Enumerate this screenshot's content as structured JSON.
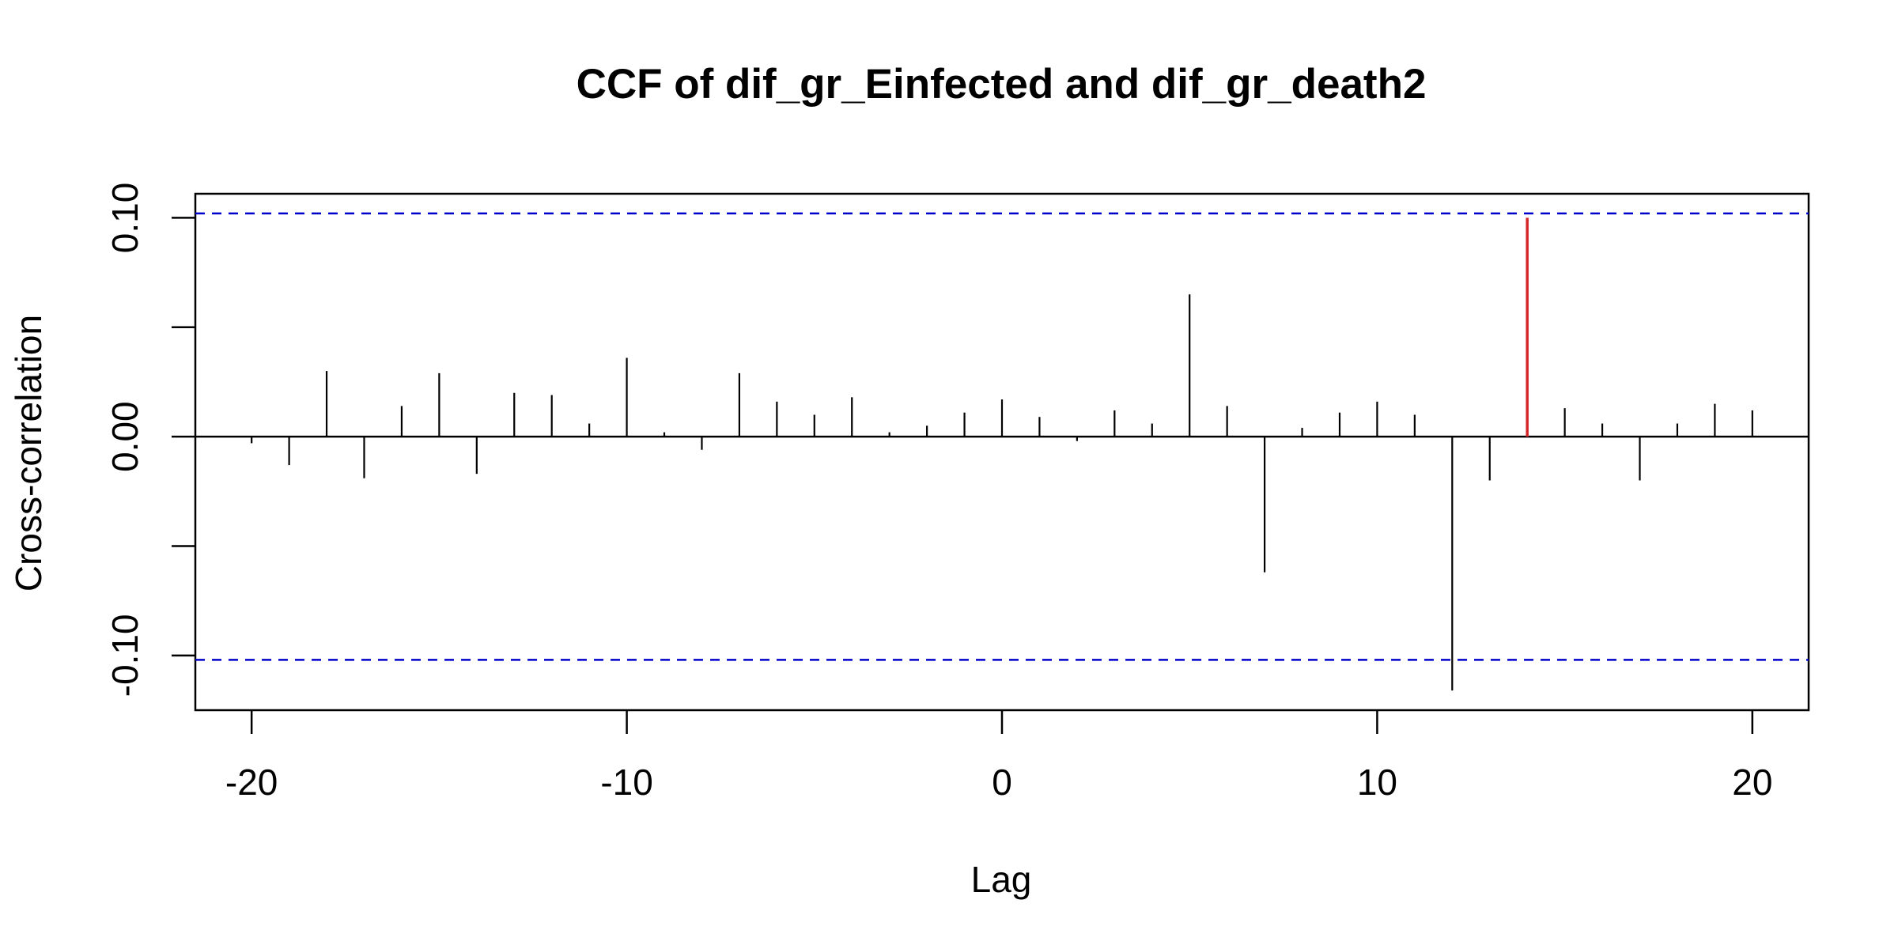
{
  "chart_data": {
    "type": "bar",
    "title": "CCF of dif_gr_Einfected and dif_gr_death2",
    "xlabel": "Lag",
    "ylabel": "Cross-correlation",
    "xlim": [
      -21.5,
      21.5
    ],
    "ylim": [
      -0.125,
      0.111
    ],
    "x_ticks": [
      -20,
      -10,
      0,
      10,
      20
    ],
    "x_tick_labels": [
      "-20",
      "-10",
      "0",
      "10",
      "20"
    ],
    "y_ticks": [
      -0.1,
      -0.05,
      0.0,
      0.05,
      0.1
    ],
    "y_tick_labels": [
      "-0.10",
      "",
      "0.00",
      "",
      "0.10"
    ],
    "confidence_bounds": [
      0.102,
      -0.102
    ],
    "grid": false,
    "colors": {
      "bars": "#000000",
      "highlight": "#d62728",
      "bounds": "#0000cc",
      "zero_line": "#000000"
    },
    "highlight_lag": 14,
    "x": [
      -20,
      -19,
      -18,
      -17,
      -16,
      -15,
      -14,
      -13,
      -12,
      -11,
      -10,
      -9,
      -8,
      -7,
      -6,
      -5,
      -4,
      -3,
      -2,
      -1,
      0,
      1,
      2,
      3,
      4,
      5,
      6,
      7,
      8,
      9,
      10,
      11,
      12,
      13,
      14,
      15,
      16,
      17,
      18,
      19,
      20
    ],
    "values": [
      -0.003,
      -0.013,
      0.03,
      -0.019,
      0.014,
      0.029,
      -0.017,
      0.02,
      0.019,
      0.006,
      0.036,
      0.002,
      -0.006,
      0.029,
      0.016,
      0.01,
      0.018,
      0.002,
      0.005,
      0.011,
      0.017,
      0.009,
      -0.002,
      0.012,
      0.006,
      0.065,
      0.014,
      -0.062,
      0.004,
      0.011,
      0.016,
      0.01,
      -0.116,
      -0.02,
      0.1,
      0.013,
      0.006,
      -0.02,
      0.006,
      0.015,
      0.012
    ]
  }
}
